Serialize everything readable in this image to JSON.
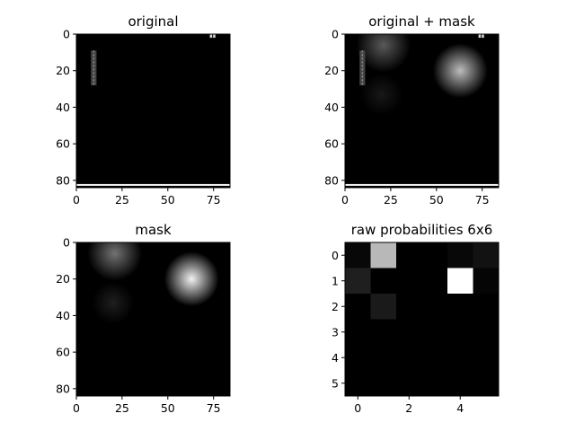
{
  "chart_data": [
    {
      "type": "heatmap",
      "title": "original",
      "grid": false,
      "cmap": "gray",
      "image_size": [
        84,
        84
      ],
      "xticks": [
        0,
        25,
        50,
        75
      ],
      "yticks": [
        0,
        20,
        40,
        60,
        80
      ],
      "features": [
        {
          "kind": "vertical-streak",
          "x_range": [
            8,
            11
          ],
          "y_range": [
            9,
            28
          ],
          "intensity": 0.55
        },
        {
          "kind": "small-bright-block",
          "x_range": [
            73,
            76
          ],
          "y_range": [
            0,
            2
          ],
          "intensity": 0.85
        },
        {
          "kind": "bottom-line",
          "x_range": [
            0,
            84
          ],
          "y_range": [
            82,
            83
          ],
          "intensity": 0.95
        }
      ]
    },
    {
      "type": "heatmap",
      "title": "original + mask",
      "grid": false,
      "cmap": "gray",
      "image_size": [
        84,
        84
      ],
      "xticks": [
        0,
        25,
        50,
        75
      ],
      "yticks": [
        0,
        20,
        40,
        60,
        80
      ]
    },
    {
      "type": "heatmap",
      "title": "mask",
      "grid": false,
      "cmap": "gray",
      "image_size": [
        84,
        84
      ],
      "xticks": [
        0,
        25,
        50,
        75
      ],
      "yticks": [
        0,
        20,
        40,
        60,
        80
      ],
      "blobs": [
        {
          "x": 21,
          "y": 6,
          "radius": 13,
          "intensity": 0.45
        },
        {
          "x": 63,
          "y": 20,
          "radius": 13,
          "intensity": 0.95
        },
        {
          "x": 20,
          "y": 33,
          "radius": 10,
          "intensity": 0.12
        }
      ]
    },
    {
      "type": "heatmap",
      "title": "raw probabilities 6x6",
      "grid": false,
      "cmap": "gray",
      "xticks": [
        0,
        2,
        4
      ],
      "yticks": [
        0,
        1,
        2,
        3,
        4,
        5
      ],
      "values": [
        [
          0.03,
          0.72,
          0.0,
          0.0,
          0.03,
          0.07
        ],
        [
          0.12,
          0.0,
          0.0,
          0.0,
          1.0,
          0.02
        ],
        [
          0.0,
          0.1,
          0.0,
          0.0,
          0.0,
          0.0
        ],
        [
          0.0,
          0.0,
          0.0,
          0.0,
          0.0,
          0.0
        ],
        [
          0.0,
          0.0,
          0.0,
          0.0,
          0.0,
          0.0
        ],
        [
          0.0,
          0.0,
          0.0,
          0.0,
          0.0,
          0.0
        ]
      ]
    }
  ]
}
